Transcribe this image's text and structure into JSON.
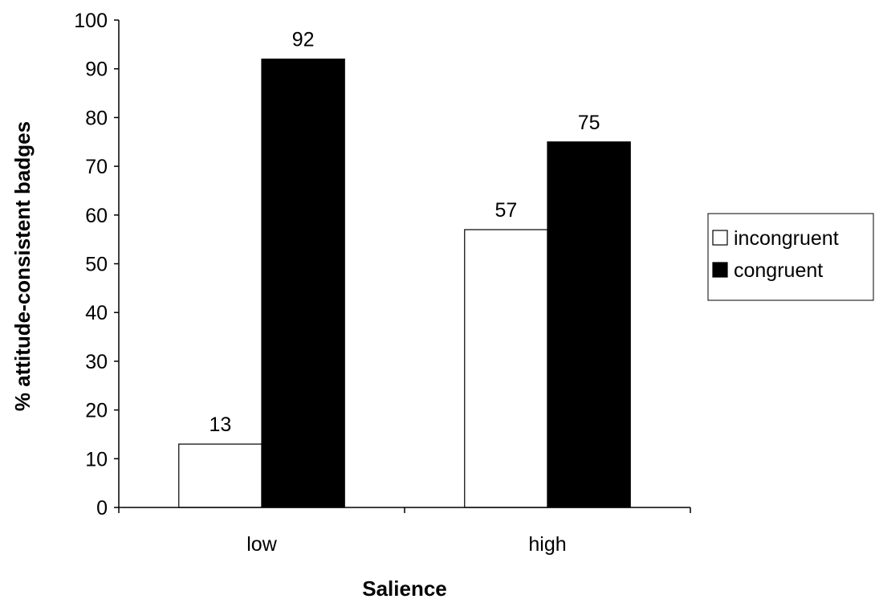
{
  "chart_data": {
    "type": "bar",
    "title": "",
    "xlabel": "Salience",
    "ylabel": "% attitude-consistent badges",
    "categories": [
      "low",
      "high"
    ],
    "ylim": [
      0,
      100
    ],
    "yticks": [
      0,
      10,
      20,
      30,
      40,
      50,
      60,
      70,
      80,
      90,
      100
    ],
    "grid": false,
    "legend_position": "right",
    "series": [
      {
        "name": "incongruent",
        "values": [
          13,
          57
        ],
        "color": "#ffffff"
      },
      {
        "name": "congruent",
        "values": [
          92,
          75
        ],
        "color": "#000000"
      }
    ]
  }
}
